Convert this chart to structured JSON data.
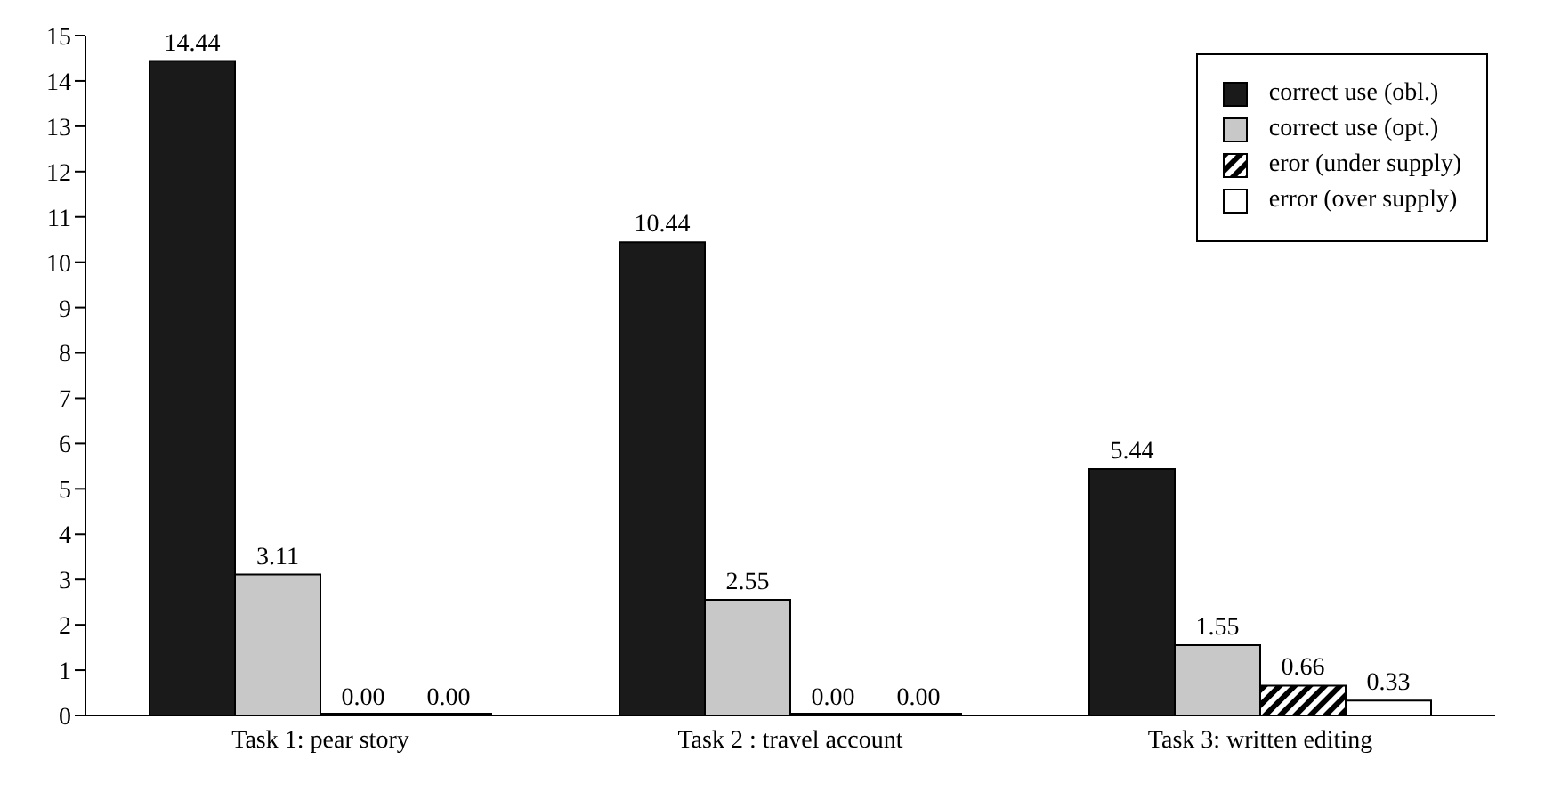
{
  "chart_data": {
    "type": "bar",
    "categories": [
      "Task 1: pear story",
      "Task 2 : travel account",
      "Task 3: written editing"
    ],
    "series": [
      {
        "name": "correct use (obl.)",
        "color": "#1a1a1a",
        "values": [
          14.44,
          10.44,
          5.44
        ],
        "value_labels": [
          "14.44",
          "10.44",
          "5.44"
        ]
      },
      {
        "name": "correct use (opt.)",
        "color": "#c8c8c8",
        "values": [
          3.11,
          2.55,
          1.55
        ],
        "value_labels": [
          "3.11",
          "2.55",
          "1.55"
        ]
      },
      {
        "name": "eror (under supply)",
        "color": "#000000",
        "values": [
          0,
          0,
          0.66
        ],
        "value_labels": [
          "0.00",
          "0.00",
          "0.66"
        ]
      },
      {
        "name": "error (over supply)",
        "color": "#ffffff",
        "values": [
          0,
          0,
          0.33
        ],
        "value_labels": [
          "0.00",
          "0.00",
          "0.33"
        ]
      }
    ],
    "ylim": [
      0,
      15
    ],
    "yticks": [
      0,
      1,
      2,
      3,
      4,
      5,
      6,
      7,
      8,
      9,
      10,
      11,
      12,
      13,
      14,
      15
    ],
    "legend": "top right",
    "grid": false
  }
}
